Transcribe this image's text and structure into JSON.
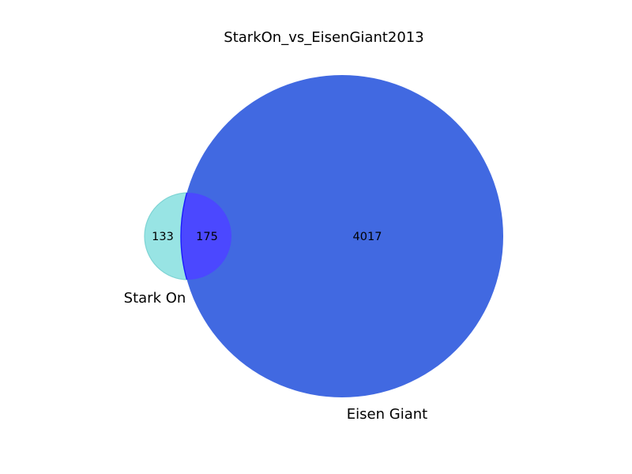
{
  "chart_data": {
    "type": "venn",
    "title": "StarkOn_vs_EisenGiant2013",
    "sets": [
      {
        "name": "Stark On",
        "label": "Stark On",
        "color": "#98e4e4",
        "only_count": "133"
      },
      {
        "name": "Eisen Giant",
        "label": "Eisen Giant",
        "color": "#4169e1",
        "only_count": "4017"
      }
    ],
    "intersection": {
      "count": "175",
      "color": "#4b48ff",
      "edge_color": "#1a1aff"
    }
  }
}
